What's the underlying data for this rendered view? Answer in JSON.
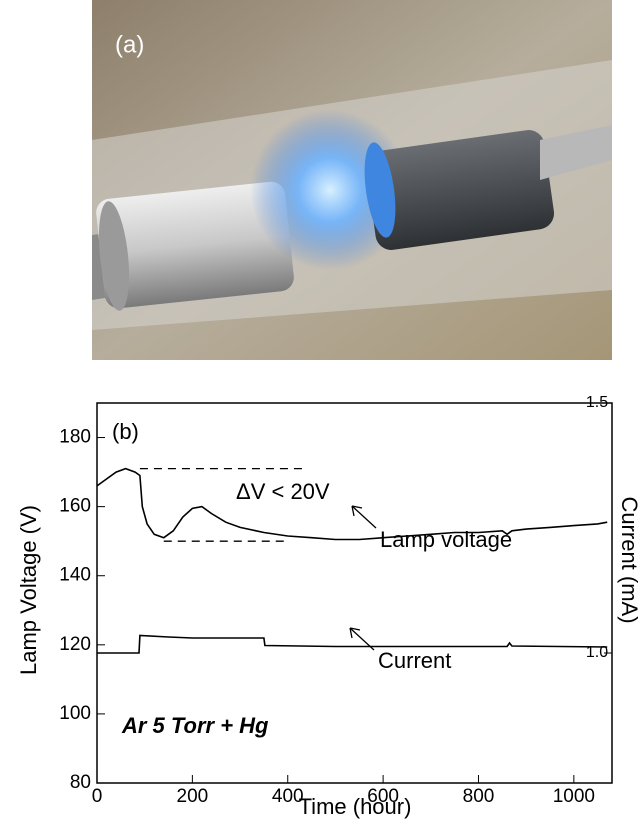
{
  "panel_a_label": "(a)",
  "chart_data": {
    "type": "line",
    "panel_label": "(b)",
    "xlabel": "Time (hour)",
    "ylabel": "Lamp Voltage (V)",
    "y2label": "Current (mA)",
    "annotations": [
      "ΔV < 20V",
      "Lamp voltage",
      "Current",
      "Ar 5 Torr + Hg"
    ],
    "xlim": [
      0,
      1080
    ],
    "xticks": [
      0,
      200,
      400,
      600,
      800,
      1000
    ],
    "ylim": [
      80,
      190
    ],
    "yticks": [
      80,
      100,
      120,
      140,
      160,
      180
    ],
    "y2lim": [
      0.74,
      1.5
    ],
    "y2ticks": [
      {
        "value": 1.0,
        "label": "1.0"
      },
      {
        "value": 1.5,
        "label": "1.5"
      }
    ],
    "reference_lines": [
      {
        "y": 171,
        "x": [
          90,
          430
        ]
      },
      {
        "y": 150,
        "x": [
          140,
          400
        ]
      }
    ],
    "series": [
      {
        "name": "Lamp voltage",
        "color": "#000000",
        "x": [
          0,
          20,
          40,
          60,
          80,
          90,
          95,
          105,
          120,
          140,
          160,
          180,
          200,
          220,
          240,
          270,
          300,
          350,
          400,
          450,
          500,
          550,
          600,
          650,
          700,
          750,
          800,
          850,
          860,
          870,
          900,
          950,
          1000,
          1050,
          1070
        ],
        "values": [
          166,
          168,
          170,
          171,
          170,
          169,
          160,
          155,
          152,
          151,
          153,
          157,
          159.5,
          160,
          158,
          155.5,
          154,
          152.5,
          151.5,
          151,
          150.5,
          150.5,
          151,
          151.5,
          152,
          152.5,
          152.5,
          153,
          152,
          153,
          153.5,
          154,
          154.5,
          155,
          155.5
        ]
      },
      {
        "name": "Current",
        "color": "#000000",
        "axis": "y2",
        "x": [
          0,
          88,
          90,
          150,
          200,
          250,
          350,
          352,
          500,
          700,
          860,
          865,
          870,
          1070
        ],
        "values": [
          1.0,
          1.0,
          1.035,
          1.032,
          1.03,
          1.03,
          1.03,
          1.015,
          1.013,
          1.013,
          1.013,
          1.02,
          1.014,
          1.012
        ]
      }
    ]
  }
}
